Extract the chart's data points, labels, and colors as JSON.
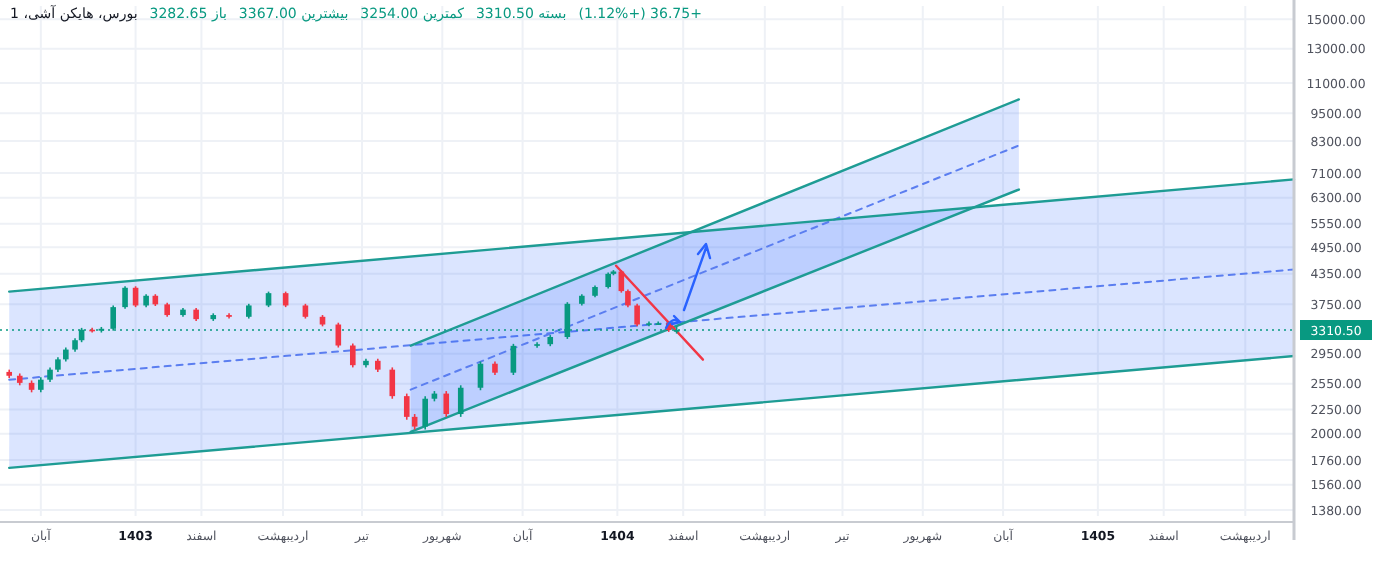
{
  "chart_data": {
    "type": "candlestick",
    "title": "بورس، هایکن آشی، 1",
    "annotations": [
      "باز 3282.65",
      "بیشترین 3367.00",
      "کمترین 3254.00",
      "بسته 3310.50",
      "+36.75 (+1.12%)"
    ],
    "x": [
      "1403-07-08",
      "1403-07-16",
      "1403-07-25",
      "1403-08-01",
      "1403-08-08",
      "1403-08-14",
      "1403-08-20",
      "1403-08-27",
      "1403-09-01",
      "1403-09-09",
      "1403-09-16",
      "1403-09-25",
      "1403-10-04",
      "1403-10-12",
      "1403-10-20",
      "1403-10-27",
      "1403-11-05",
      "1403-11-17",
      "1403-11-27",
      "1403-12-10",
      "1403-12-22",
      "1404-01-06",
      "1404-01-21",
      "1404-02-03",
      "1404-02-18",
      "1404-03-02",
      "1404-03-14",
      "1404-03-25",
      "1404-04-04",
      "1404-04-13",
      "1404-04-24",
      "1404-05-05",
      "1404-05-11",
      "1404-05-19",
      "1404-05-26",
      "1404-06-04",
      "1404-06-15",
      "1404-06-30",
      "1404-07-11",
      "1404-07-25",
      "1404-08-12",
      "1404-08-22",
      "1404-09-04",
      "1404-09-15",
      "1404-09-25",
      "1404-10-05",
      "1404-10-09",
      "1404-10-15",
      "1404-10-20",
      "1404-10-27",
      "1404-11-05",
      "1404-11-12",
      "1404-11-20",
      "1404-11-26"
    ],
    "ohlc": [
      [
        2700,
        2730,
        2620,
        2650
      ],
      [
        2650,
        2680,
        2530,
        2560
      ],
      [
        2560,
        2590,
        2445,
        2475
      ],
      [
        2475,
        2630,
        2445,
        2600
      ],
      [
        2600,
        2760,
        2570,
        2730
      ],
      [
        2730,
        2900,
        2700,
        2870
      ],
      [
        2870,
        3040,
        2840,
        3010
      ],
      [
        3010,
        3180,
        2980,
        3150
      ],
      [
        3150,
        3345,
        3120,
        3315
      ],
      [
        3315,
        3345,
        3270,
        3300
      ],
      [
        3300,
        3360,
        3270,
        3330
      ],
      [
        3330,
        3730,
        3300,
        3700
      ],
      [
        3700,
        4095,
        3670,
        4065
      ],
      [
        4065,
        4095,
        3700,
        3730
      ],
      [
        3730,
        3940,
        3700,
        3910
      ],
      [
        3910,
        3940,
        3720,
        3750
      ],
      [
        3750,
        3780,
        3530,
        3560
      ],
      [
        3560,
        3685,
        3530,
        3655
      ],
      [
        3655,
        3685,
        3460,
        3490
      ],
      [
        3490,
        3590,
        3460,
        3560
      ],
      [
        3560,
        3590,
        3500,
        3530
      ],
      [
        3530,
        3760,
        3500,
        3730
      ],
      [
        3730,
        3990,
        3700,
        3960
      ],
      [
        3960,
        3990,
        3700,
        3730
      ],
      [
        3730,
        3760,
        3500,
        3530
      ],
      [
        3530,
        3560,
        3370,
        3400
      ],
      [
        3400,
        3430,
        3040,
        3070
      ],
      [
        3070,
        3100,
        2760,
        2790
      ],
      [
        2790,
        2880,
        2760,
        2850
      ],
      [
        2850,
        2880,
        2700,
        2730
      ],
      [
        2730,
        2760,
        2370,
        2400
      ],
      [
        2400,
        2430,
        2140,
        2170
      ],
      [
        2170,
        2200,
        2040,
        2070
      ],
      [
        2070,
        2400,
        2040,
        2370
      ],
      [
        2370,
        2460,
        2340,
        2430
      ],
      [
        2430,
        2460,
        2170,
        2200
      ],
      [
        2200,
        2530,
        2170,
        2500
      ],
      [
        2500,
        2840,
        2470,
        2810
      ],
      [
        2810,
        2840,
        2660,
        2690
      ],
      [
        2690,
        3095,
        2660,
        3065
      ],
      [
        3065,
        3120,
        3035,
        3090
      ],
      [
        3090,
        3230,
        3060,
        3200
      ],
      [
        3200,
        3790,
        3170,
        3760
      ],
      [
        3760,
        3940,
        3730,
        3910
      ],
      [
        3910,
        4110,
        3880,
        4080
      ],
      [
        4080,
        4380,
        4050,
        4350
      ],
      [
        4350,
        4430,
        4320,
        4400
      ],
      [
        4400,
        4430,
        3970,
        4000
      ],
      [
        4000,
        4030,
        3700,
        3730
      ],
      [
        3730,
        3760,
        3370,
        3400
      ],
      [
        3400,
        3450,
        3370,
        3420
      ],
      [
        3420,
        3450,
        3390,
        3420
      ],
      [
        3420,
        3450,
        3280,
        3310
      ],
      [
        3282.65,
        3367.0,
        3254.0,
        3310.5
      ]
    ],
    "series": [
      {
        "type": "line",
        "x": [
          "1403-07-08",
          "1406-03-10"
        ],
        "values": [
          2600,
          4445
        ],
        "lower": [
          1693,
          2917
        ],
        "upper": [
          3990,
          6885
        ],
        "color": "#5b7ef0",
        "line_style": "dashed"
      },
      {
        "type": "line",
        "x": [
          "1404-05-08",
          "1405-08-13"
        ],
        "values": [
          2477,
          8120
        ],
        "lower": [
          2017,
          6555
        ],
        "upper": [
          3068,
          10160
        ],
        "color": "#5b7ef0",
        "line_style": "dashed"
      },
      {
        "type": "line",
        "x": [
          "1403-07-08",
          "1406-03-10"
        ],
        "values": [
          3990,
          6885
        ],
        "color": "#1e9c94",
        "line_style": "solid"
      },
      {
        "type": "line",
        "x": [
          "1403-07-08",
          "1406-03-10"
        ],
        "values": [
          1693,
          2917
        ],
        "color": "#1e9c94",
        "line_style": "solid"
      },
      {
        "type": "line",
        "x": [
          "1404-05-08",
          "1405-08-13"
        ],
        "values": [
          3068,
          10160
        ],
        "color": "#1e9c94",
        "line_style": "solid"
      },
      {
        "type": "line",
        "x": [
          "1404-05-08",
          "1405-08-13"
        ],
        "values": [
          2017,
          6555
        ],
        "color": "#1e9c94",
        "line_style": "solid"
      },
      {
        "type": "line",
        "x": [
          "1404-10-11",
          "1404-12-16"
        ],
        "values": [
          4525,
          2866
        ],
        "color": "#f23645",
        "line_style": "solid"
      }
    ],
    "xlim": [
      "1403-07-01",
      "1406-03-10"
    ],
    "ylim": [
      1340,
      16000
    ],
    "log": true,
    "grid": true,
    "xticks": [
      {
        "value": "1403-08-01",
        "label": "آبان"
      },
      {
        "value": "1403-10-12",
        "label": "1403"
      },
      {
        "value": "1403-12-01",
        "label": "اسفند"
      },
      {
        "value": "1404-02-01",
        "label": "اردیبهشت"
      },
      {
        "value": "1404-04-01",
        "label": "تیر"
      },
      {
        "value": "1404-06-01",
        "label": "شهریور"
      },
      {
        "value": "1404-08-01",
        "label": "آبان"
      },
      {
        "value": "1404-10-12",
        "label": "1404"
      },
      {
        "value": "1404-12-01",
        "label": "اسفند"
      },
      {
        "value": "1405-02-01",
        "label": "اردیبهشت"
      },
      {
        "value": "1405-04-01",
        "label": "تیر"
      },
      {
        "value": "1405-06-01",
        "label": "شهریور"
      },
      {
        "value": "1405-08-01",
        "label": "آبان"
      },
      {
        "value": "1405-10-12",
        "label": "1405"
      },
      {
        "value": "1405-12-01",
        "label": "اسفند"
      },
      {
        "value": "1406-02-01",
        "label": "اردیبهشت"
      }
    ],
    "yticks": [
      {
        "value": 1380,
        "label": "1380.00"
      },
      {
        "value": 1560,
        "label": "1560.00"
      },
      {
        "value": 1760,
        "label": "1760.00"
      },
      {
        "value": 2000,
        "label": "2000.00"
      },
      {
        "value": 2250,
        "label": "2250.00"
      },
      {
        "value": 2550,
        "label": "2550.00"
      },
      {
        "value": 2950,
        "label": "2950.00"
      },
      {
        "value": 3750,
        "label": "3750.00"
      },
      {
        "value": 4350,
        "label": "4350.00"
      },
      {
        "value": 4950,
        "label": "4950.00"
      },
      {
        "value": 5550,
        "label": "5550.00"
      },
      {
        "value": 6300,
        "label": "6300.00"
      },
      {
        "value": 7100,
        "label": "7100.00"
      },
      {
        "value": 8300,
        "label": "8300.00"
      },
      {
        "value": 9500,
        "label": "9500.00"
      },
      {
        "value": 11000,
        "label": "11000.00"
      },
      {
        "value": 13000,
        "label": "13000.00"
      },
      {
        "value": 15000,
        "label": "15000.00"
      }
    ],
    "ref_lines": [
      {
        "axis": "y",
        "value": 3310.5,
        "label": "3310.50",
        "color": "#089981",
        "line_style": "dotted"
      }
    ]
  }
}
